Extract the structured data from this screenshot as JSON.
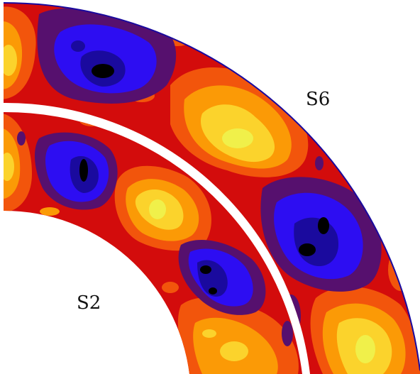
{
  "figure": {
    "labels": {
      "outer": "S6",
      "inner": "S2"
    },
    "palette": {
      "black": "#000000",
      "navy": "#1a0a9e",
      "blue": "#2d0df2",
      "violet": "#56106e",
      "red": "#d30c0c",
      "orange_red": "#f2550c",
      "orange": "#fb9a06",
      "yellow": "#fbd32c",
      "pale_yellow": "#f0f04a",
      "background": "#ffffff"
    }
  }
}
